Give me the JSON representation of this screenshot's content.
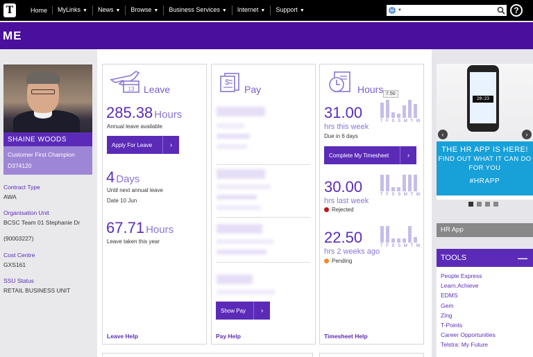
{
  "topnav": {
    "logo": "T",
    "items": [
      {
        "label": "Home",
        "has_menu": false
      },
      {
        "label": "MyLinks",
        "has_menu": true
      },
      {
        "label": "News",
        "has_menu": true
      },
      {
        "label": "Browse",
        "has_menu": true
      },
      {
        "label": "Business Services",
        "has_menu": true
      },
      {
        "label": "Internet",
        "has_menu": true
      },
      {
        "label": "Support",
        "has_menu": true
      }
    ],
    "search_value": "",
    "help": "?"
  },
  "page": {
    "title": "ME"
  },
  "profile": {
    "name": "SHAINE WOODS",
    "role": "Customer First Champion",
    "id": "D374120",
    "fields": [
      {
        "label": "Contract Type",
        "value": "AWA"
      },
      {
        "label": "Organisation Unit",
        "value": "BCSC Team 01 Stephanie Dr",
        "value2": "(90003227)"
      },
      {
        "label": "Cost Centre",
        "value": "GXS161"
      },
      {
        "label": "SSU Status",
        "value": "RETAIL BUSINESS UNIT"
      }
    ]
  },
  "leave": {
    "title": "Leave",
    "icon_day": "13",
    "annual_value": "285.38",
    "annual_unit": "Hours",
    "annual_label": "Annual leave available",
    "apply_label": "Apply For Leave",
    "next_value": "4",
    "next_unit": "Days",
    "next_label": "Until next annual leave",
    "next_date": "Date 10 Jun",
    "taken_value": "67.71",
    "taken_unit": "Hours",
    "taken_label": "Leave taken this year",
    "help": "Leave Help"
  },
  "pay": {
    "title": "Pay",
    "show_label": "Show Pay",
    "help": "Pay Help"
  },
  "hours": {
    "title": "Hours",
    "tooltip": "7.50",
    "week_labels": "T F S S M T W",
    "this_week_value": "31.00",
    "this_week_label": "hrs this week",
    "this_week_due": "Due in 6 days",
    "complete_label": "Complete My Timesheet",
    "last_week_value": "30.00",
    "last_week_label": "hrs last week",
    "last_week_status": "Rejected",
    "two_weeks_value": "22.50",
    "two_weeks_label": "hrs 2 weeks ago",
    "two_weeks_status": "Pending",
    "status_colors": {
      "rejected": "#c0161c",
      "pending": "#f08a24"
    },
    "help": "Timesheet Help"
  },
  "promo": {
    "phone_clock": "20:23",
    "line1": "THE HR APP IS HERE!",
    "line2": "FIND OUT WHAT IT CAN DO",
    "line2b": "FOR YOU",
    "line3": "#HRAPP"
  },
  "hrapp": {
    "label": "HR App"
  },
  "tools": {
    "title": "TOOLS",
    "items": [
      "People Express",
      "Learn.Achieve",
      "EDMS",
      "Gem",
      "Zing",
      "T-Points",
      "Career Opportunities",
      "Telstra: My Future"
    ]
  },
  "colors": {
    "accent": "#5b2bb8",
    "band": "#4b0f9e",
    "promo": "#18a0d8"
  }
}
